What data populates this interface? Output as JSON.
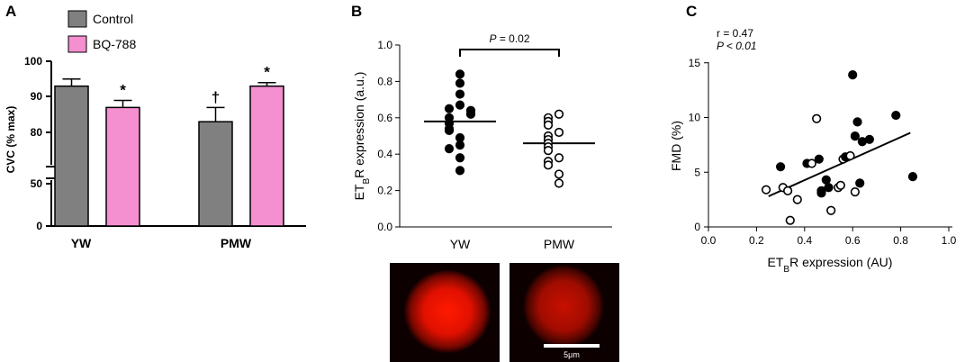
{
  "panels": {
    "A": {
      "letter": "A"
    },
    "B": {
      "letter": "B"
    },
    "C": {
      "letter": "C"
    }
  },
  "chart_data": [
    {
      "panel": "A",
      "type": "bar",
      "categories": [
        "YW",
        "PMW"
      ],
      "series": [
        {
          "name": "Control",
          "color": "#808080",
          "values": [
            93,
            83
          ],
          "errors": [
            2,
            4
          ]
        },
        {
          "name": "BQ-788",
          "color": "#f48fd0",
          "values": [
            87,
            93
          ],
          "errors": [
            2,
            1
          ]
        }
      ],
      "ylabel": "CVC (% max)",
      "yticks": [
        "0",
        "50",
        "80",
        "90",
        "100"
      ],
      "axis_break": true,
      "annotations": [
        {
          "text": "*",
          "category": "YW",
          "series": "BQ-788"
        },
        {
          "text": "†",
          "category": "PMW",
          "series": "Control"
        },
        {
          "text": "*",
          "category": "PMW",
          "series": "BQ-788"
        }
      ],
      "legend": "top-left"
    },
    {
      "panel": "B",
      "type": "scatter",
      "categories": [
        "YW",
        "PMW"
      ],
      "ylabel_main": "ET",
      "ylabel_sub": "B",
      "ylabel_rest": "R expression (a.u.)",
      "ylim": [
        0,
        1.0
      ],
      "yticks": [
        "0.0",
        "0.2",
        "0.4",
        "0.6",
        "0.8",
        "1.0"
      ],
      "groups": [
        {
          "category": "YW",
          "filled": true,
          "mean": 0.58,
          "values": [
            0.84,
            0.79,
            0.73,
            0.67,
            0.65,
            0.64,
            0.62,
            0.6,
            0.57,
            0.54,
            0.53,
            0.49,
            0.45,
            0.43,
            0.38,
            0.31
          ]
        },
        {
          "category": "PMW",
          "filled": false,
          "mean": 0.46,
          "values": [
            0.62,
            0.6,
            0.58,
            0.56,
            0.52,
            0.5,
            0.48,
            0.46,
            0.44,
            0.42,
            0.38,
            0.36,
            0.34,
            0.29,
            0.24
          ]
        }
      ],
      "bracket_label_italic": "P",
      "bracket_label_rest": " = 0.02",
      "scale_bar_label": "5μm"
    },
    {
      "panel": "C",
      "type": "scatter",
      "ylabel": "FMD (%)",
      "xlabel_main": "ET",
      "xlabel_sub": "B",
      "xlabel_rest": "R expression (AU)",
      "xlim": [
        0,
        1.0
      ],
      "ylim": [
        0,
        15
      ],
      "xticks": [
        "0.0",
        "0.2",
        "0.4",
        "0.6",
        "0.8",
        "1.0"
      ],
      "yticks": [
        "0",
        "5",
        "10",
        "15"
      ],
      "stats_r": "r = 0.47",
      "stats_p": "P < 0.01",
      "regression": {
        "x0": 0.25,
        "y0": 2.8,
        "x1": 0.84,
        "y1": 8.6
      },
      "points": [
        {
          "x": 0.24,
          "y": 3.4,
          "filled": false
        },
        {
          "x": 0.3,
          "y": 5.5,
          "filled": true
        },
        {
          "x": 0.31,
          "y": 3.6,
          "filled": false
        },
        {
          "x": 0.33,
          "y": 3.3,
          "filled": false
        },
        {
          "x": 0.34,
          "y": 0.6,
          "filled": false
        },
        {
          "x": 0.37,
          "y": 2.5,
          "filled": false
        },
        {
          "x": 0.41,
          "y": 5.8,
          "filled": true
        },
        {
          "x": 0.43,
          "y": 5.8,
          "filled": false
        },
        {
          "x": 0.45,
          "y": 9.9,
          "filled": false
        },
        {
          "x": 0.46,
          "y": 6.2,
          "filled": true
        },
        {
          "x": 0.47,
          "y": 3.1,
          "filled": true
        },
        {
          "x": 0.47,
          "y": 3.3,
          "filled": true
        },
        {
          "x": 0.49,
          "y": 4.3,
          "filled": true
        },
        {
          "x": 0.5,
          "y": 3.6,
          "filled": true
        },
        {
          "x": 0.51,
          "y": 1.5,
          "filled": false
        },
        {
          "x": 0.54,
          "y": 3.6,
          "filled": false
        },
        {
          "x": 0.55,
          "y": 3.8,
          "filled": false
        },
        {
          "x": 0.56,
          "y": 6.2,
          "filled": false
        },
        {
          "x": 0.57,
          "y": 6.4,
          "filled": true
        },
        {
          "x": 0.59,
          "y": 6.5,
          "filled": false
        },
        {
          "x": 0.6,
          "y": 13.9,
          "filled": true
        },
        {
          "x": 0.61,
          "y": 8.3,
          "filled": true
        },
        {
          "x": 0.61,
          "y": 3.2,
          "filled": false
        },
        {
          "x": 0.62,
          "y": 9.6,
          "filled": true
        },
        {
          "x": 0.63,
          "y": 4.0,
          "filled": true
        },
        {
          "x": 0.64,
          "y": 7.8,
          "filled": true
        },
        {
          "x": 0.67,
          "y": 8.0,
          "filled": true
        },
        {
          "x": 0.78,
          "y": 10.2,
          "filled": true
        },
        {
          "x": 0.85,
          "y": 4.6,
          "filled": true
        }
      ]
    }
  ]
}
